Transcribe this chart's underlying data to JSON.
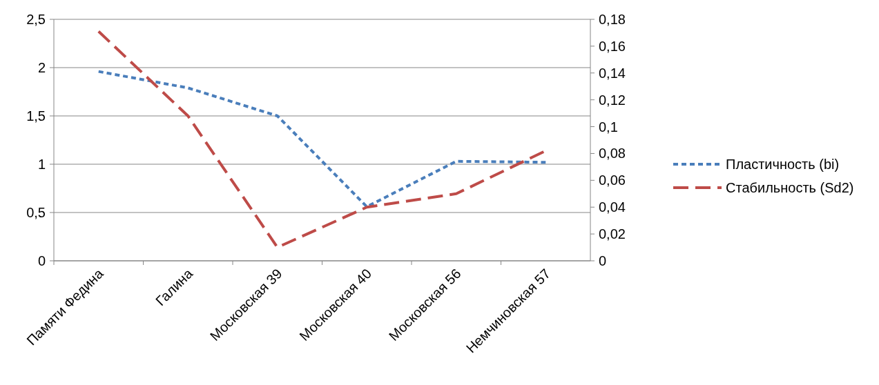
{
  "chart_data": {
    "type": "line",
    "categories": [
      "Памяти Федина",
      "Галина",
      "Московская 39",
      "Московская 40",
      "Московская 56",
      "Немчиновская 57"
    ],
    "series": [
      {
        "name": "Пластичность (bi)",
        "color": "#4a7ebb",
        "line_style": "dotted",
        "values": [
          1.96,
          1.79,
          1.5,
          0.56,
          1.03,
          1.02
        ]
      },
      {
        "name": "Стабильность (Sd2)",
        "color": "#be4b48",
        "line_style": "dashed",
        "axis": "y2",
        "values": [
          0.171,
          0.108,
          0.01,
          0.04,
          0.05,
          0.082
        ]
      }
    ],
    "ylim": [
      0,
      2.5
    ],
    "yticks": [
      0,
      {
        "value": 0.5,
        "label": "0,5"
      },
      1,
      {
        "value": 1.5,
        "label": "1,5"
      },
      2,
      {
        "value": 2.5,
        "label": "2,5"
      }
    ],
    "y2lim": [
      0,
      0.18
    ],
    "y2ticks": [
      0,
      {
        "value": 0.02,
        "label": "0,02"
      },
      {
        "value": 0.04,
        "label": "0,04"
      },
      {
        "value": 0.06,
        "label": "0,06"
      },
      {
        "value": 0.08,
        "label": "0,08"
      },
      {
        "value": 0.1,
        "label": "0,1"
      },
      {
        "value": 0.12,
        "label": "0,12"
      },
      {
        "value": 0.14,
        "label": "0,14"
      },
      {
        "value": 0.16,
        "label": "0,16"
      },
      {
        "value": 0.18,
        "label": "0,18"
      }
    ],
    "grid": "y",
    "legend": "right"
  }
}
